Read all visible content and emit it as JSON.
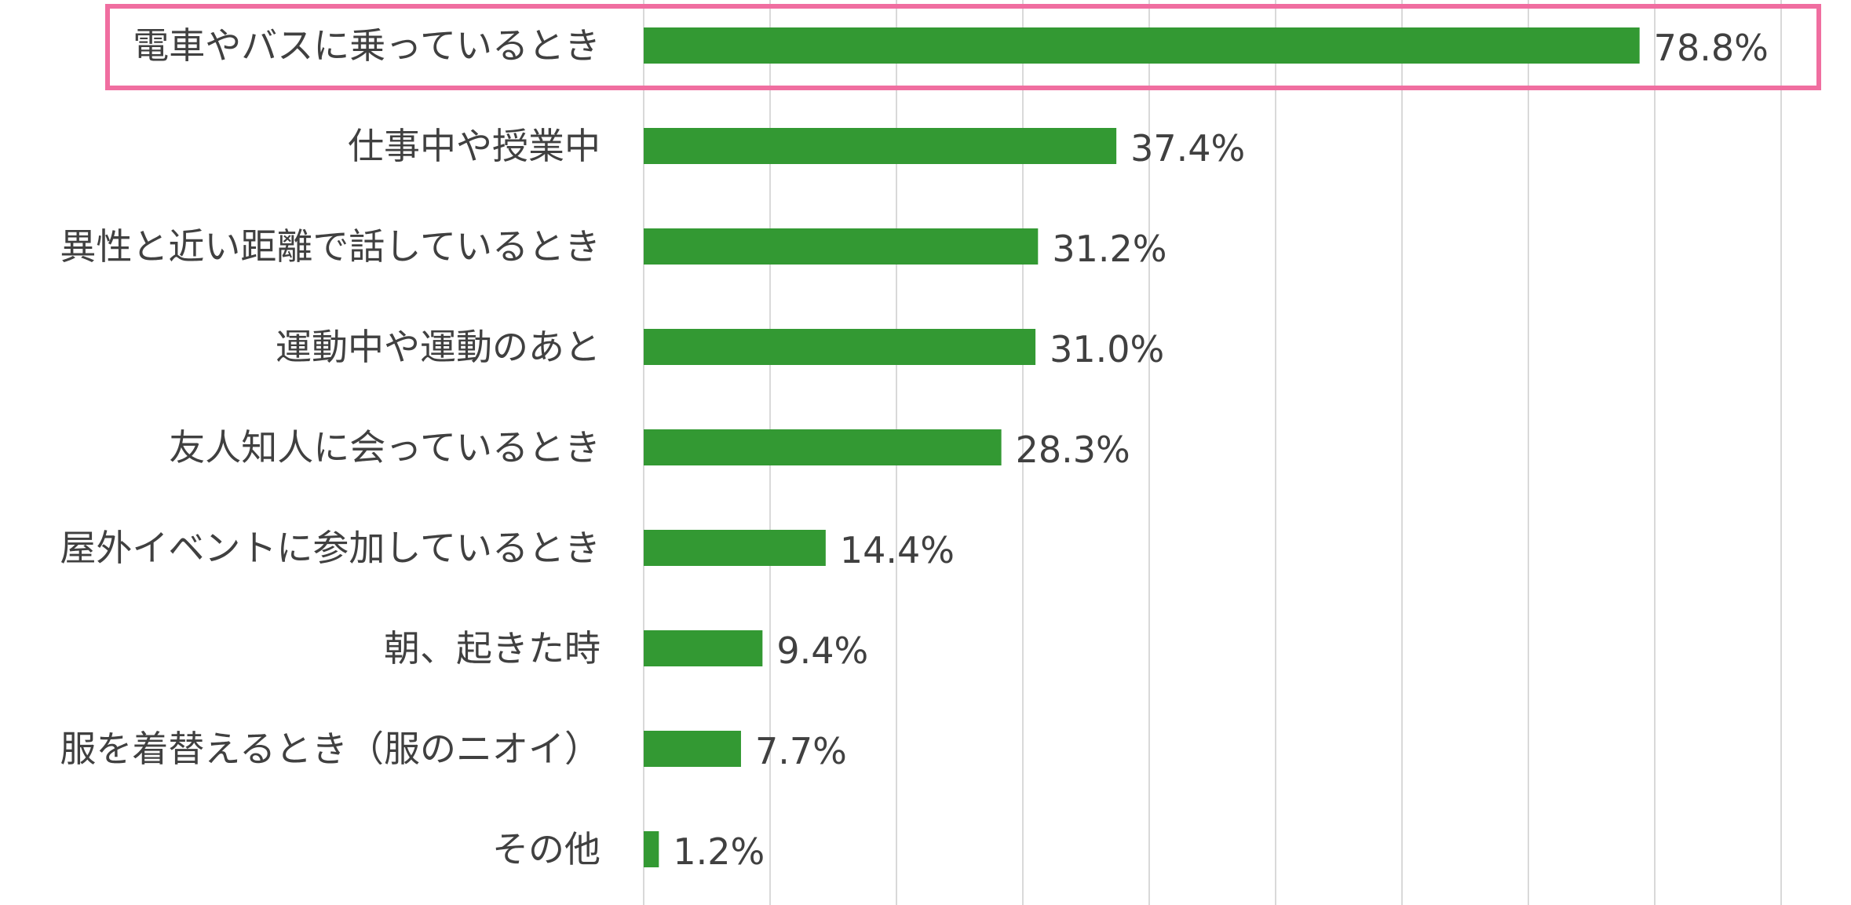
{
  "chart_data": {
    "type": "bar",
    "orientation": "horizontal",
    "categories": [
      "電車やバスに乗っているとき",
      "仕事中や授業中",
      "異性と近い距離で話しているとき",
      "運動中や運動のあと",
      "友人知人に会っているとき",
      "屋外イベントに参加しているとき",
      "朝、起きた時",
      "服を着替えるとき（服のニオイ）",
      "その他"
    ],
    "values": [
      78.8,
      37.4,
      31.2,
      31.0,
      28.3,
      14.4,
      9.4,
      7.7,
      1.2
    ],
    "value_labels": [
      "78.8%",
      "37.4%",
      "31.2%",
      "31.0%",
      "28.3%",
      "14.4%",
      "9.4%",
      "7.7%",
      "1.2%"
    ],
    "xlim": [
      0,
      90
    ],
    "grid": true,
    "highlight_index": 0,
    "title": "",
    "xlabel": "",
    "ylabel": ""
  },
  "colors": {
    "bar": "#339933",
    "grid": "#d9d9d9",
    "highlight": "#f06ea0",
    "text": "#404040"
  }
}
